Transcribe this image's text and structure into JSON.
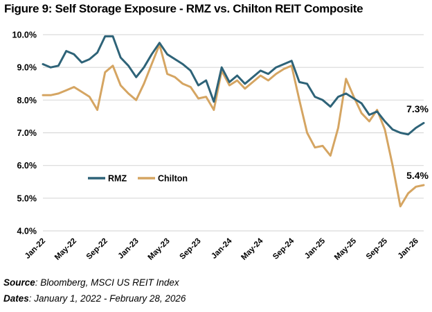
{
  "title": "Figure 9: Self Storage Exposure - RMZ vs. Chilton REIT Composite",
  "colors": {
    "rmz": "#2E6378",
    "chilton": "#D5A562",
    "grid": "#D9D9D9",
    "text": "#000000",
    "background": "#FFFFFF"
  },
  "chart_data": {
    "type": "line",
    "title": "Figure 9: Self Storage Exposure - RMZ vs. Chilton REIT Composite",
    "xlabel": "",
    "ylabel": "",
    "ylim": [
      4,
      10
    ],
    "yticks": [
      "10.0%",
      "9.0%",
      "8.0%",
      "7.0%",
      "6.0%",
      "5.0%",
      "4.0%"
    ],
    "grid": true,
    "legend_position": "inside-left",
    "x_tick_every": 4,
    "x": [
      "Jan-22",
      "Feb-22",
      "Mar-22",
      "Apr-22",
      "May-22",
      "Jun-22",
      "Jul-22",
      "Aug-22",
      "Sep-22",
      "Oct-22",
      "Nov-22",
      "Dec-22",
      "Jan-23",
      "Feb-23",
      "Mar-23",
      "Apr-23",
      "May-23",
      "Jun-23",
      "Jul-23",
      "Aug-23",
      "Sep-23",
      "Oct-23",
      "Nov-23",
      "Dec-23",
      "Jan-24",
      "Feb-24",
      "Mar-24",
      "Apr-24",
      "May-24",
      "Jun-24",
      "Jul-24",
      "Aug-24",
      "Sep-24",
      "Oct-24",
      "Nov-24",
      "Dec-24",
      "Jan-25",
      "Feb-25",
      "Mar-25",
      "Apr-25",
      "May-25",
      "Jun-25",
      "Jul-25",
      "Aug-25",
      "Sep-25",
      "Oct-25",
      "Nov-25",
      "Dec-25",
      "Jan-26",
      "Feb-26"
    ],
    "series": [
      {
        "name": "RMZ",
        "color": "#2E6378",
        "values": [
          9.1,
          9.0,
          9.05,
          9.5,
          9.4,
          9.15,
          9.25,
          9.45,
          9.95,
          9.95,
          9.3,
          9.05,
          8.7,
          9.0,
          9.4,
          9.75,
          9.4,
          9.25,
          9.1,
          8.9,
          8.45,
          8.6,
          7.95,
          9.0,
          8.55,
          8.75,
          8.5,
          8.7,
          8.9,
          8.8,
          9.0,
          9.1,
          9.2,
          8.55,
          8.5,
          8.1,
          8.0,
          7.8,
          8.1,
          8.2,
          8.05,
          7.9,
          7.55,
          7.65,
          7.35,
          7.1,
          7.0,
          6.95,
          7.15,
          7.3
        ]
      },
      {
        "name": "Chilton",
        "color": "#D5A562",
        "values": [
          8.15,
          8.15,
          8.2,
          8.3,
          8.4,
          8.25,
          8.1,
          7.7,
          8.85,
          9.05,
          8.45,
          8.2,
          8.0,
          8.5,
          9.1,
          9.7,
          8.8,
          8.7,
          8.5,
          8.4,
          8.05,
          8.1,
          7.7,
          8.9,
          8.45,
          8.6,
          8.35,
          8.55,
          8.75,
          8.6,
          8.8,
          8.95,
          9.05,
          8.0,
          7.0,
          6.55,
          6.6,
          6.3,
          7.15,
          8.65,
          8.1,
          7.6,
          7.35,
          7.7,
          7.1,
          6.0,
          4.75,
          5.15,
          5.35,
          5.4
        ]
      }
    ],
    "end_labels": [
      {
        "series": "RMZ",
        "text": "7.3%"
      },
      {
        "series": "Chilton",
        "text": "5.4%"
      }
    ]
  },
  "legend": {
    "rmz": "RMZ",
    "chilton": "Chilton"
  },
  "footer": {
    "source_label": "Source",
    "source_rest": ": Bloomberg, MSCI US REIT Index",
    "dates_label": "Dates",
    "dates_rest": ": January 1, 2022 - February 28, 2026"
  }
}
